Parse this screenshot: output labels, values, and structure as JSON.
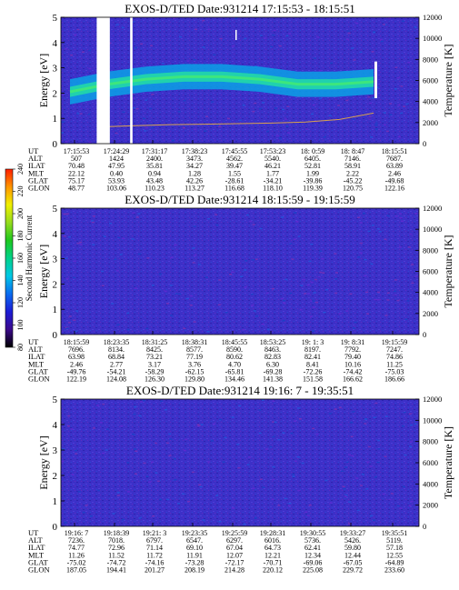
{
  "chart_data": [
    {
      "type": "heatmap",
      "title": "EXOS-D/TED",
      "date": "Date:931214",
      "time_range": "17:15:53 - 18:15:51",
      "ylabel": "Energy [eV]",
      "ylabel_right": "Temperature [K]",
      "ylim": [
        0,
        5
      ],
      "yticks": [
        "0",
        "1",
        "2",
        "3",
        "4",
        "5"
      ],
      "ylim_right": [
        0,
        12000
      ],
      "yticks_right": [
        "0",
        "2000",
        "4000",
        "6000",
        "8000",
        "10000",
        "12000"
      ],
      "time_labels": [
        "17:15:53",
        "17:24:29",
        "17:31:17",
        "17:38:23",
        "17:45:55",
        "17:53:23",
        "18: 0:59",
        "18: 8:47",
        "18:15:51"
      ],
      "rows": [
        {
          "label": "UT",
          "values": [
            "17:15:53",
            "17:24:29",
            "17:31:17",
            "17:38:23",
            "17:45:55",
            "17:53:23",
            "18: 0:59",
            "18: 8:47",
            "18:15:51"
          ]
        },
        {
          "label": "ALT",
          "values": [
            "507",
            "1424",
            "2400.",
            "3473.",
            "4562.",
            "5540.",
            "6405.",
            "7146.",
            "7687."
          ]
        },
        {
          "label": "ILAT",
          "values": [
            "70.48",
            "47.95",
            "35.81",
            "34.27",
            "39.47",
            "46.21",
            "52.81",
            "58.91",
            "63.89"
          ]
        },
        {
          "label": "MLT",
          "values": [
            "22.12",
            "0.40",
            "0.94",
            "1.28",
            "1.55",
            "1.77",
            "1.99",
            "2.22",
            "2.46"
          ]
        },
        {
          "label": "GLAT",
          "values": [
            "75.17",
            "53.93",
            "43.48",
            "42.26",
            "-28.61",
            "-34.21",
            "-39.86",
            "-45.22",
            "-49.68"
          ]
        },
        {
          "label": "GLON",
          "values": [
            "48.77",
            "103.06",
            "110.23",
            "113.27",
            "116.68",
            "118.10",
            "119.39",
            "120.75",
            "122.16"
          ]
        }
      ],
      "band_energy_ev": [
        2.0,
        2.3,
        2.5,
        2.6,
        2.6,
        2.5,
        2.3,
        2.3,
        2.4
      ],
      "temperature_k": [
        1600,
        1700,
        1800,
        1850,
        1900,
        1950,
        2050,
        2300,
        2900
      ],
      "data_gaps_minutes": [
        [
          6.0,
          8.2
        ],
        [
          11.6,
          12.0
        ]
      ],
      "colormap": "rainbow"
    },
    {
      "type": "heatmap",
      "title": "EXOS-D/TED",
      "date": "Date:931214",
      "time_range": "18:15:59 - 19:15:59",
      "ylabel": "Energy [eV]",
      "ylabel_right": "Temperature [K]",
      "ylim": [
        0,
        5
      ],
      "yticks": [
        "0",
        "1",
        "2",
        "3",
        "4",
        "5"
      ],
      "ylim_right": [
        0,
        12000
      ],
      "yticks_right": [
        "0",
        "2000",
        "4000",
        "6000",
        "8000",
        "10000",
        "12000"
      ],
      "time_labels": [
        "18:15:59",
        "18:23:35",
        "18:31:25",
        "18:38:31",
        "18:45:55",
        "18:53:25",
        "19: 1: 3",
        "19: 8:31",
        "19:15:59"
      ],
      "rows": [
        {
          "label": "UT",
          "values": [
            "18:15:59",
            "18:23:35",
            "18:31:25",
            "18:38:31",
            "18:45:55",
            "18:53:25",
            "19: 1: 3",
            "19: 8:31",
            "19:15:59"
          ]
        },
        {
          "label": "ALT",
          "values": [
            "7696.",
            "8134.",
            "8425.",
            "8577.",
            "8590.",
            "8463.",
            "8197.",
            "7792.",
            "7247."
          ]
        },
        {
          "label": "ILAT",
          "values": [
            "63.98",
            "68.84",
            "73.21",
            "77.19",
            "80.62",
            "82.83",
            "82.41",
            "79.40",
            "74.86"
          ]
        },
        {
          "label": "MLT",
          "values": [
            "2.46",
            "2.77",
            "3.17",
            "3.76",
            "4.70",
            "6.30",
            "8.41",
            "10.16",
            "11.25"
          ]
        },
        {
          "label": "GLAT",
          "values": [
            "-49.76",
            "-54.21",
            "-58.29",
            "-62.15",
            "-65.81",
            "-69.28",
            "-72.26",
            "-74.42",
            "-75.03"
          ]
        },
        {
          "label": "GLON",
          "values": [
            "122.19",
            "124.08",
            "126.30",
            "129.80",
            "134.46",
            "141.38",
            "151.58",
            "166.62",
            "186.66"
          ]
        }
      ],
      "colormap": "rainbow"
    },
    {
      "type": "heatmap",
      "title": "EXOS-D/TED",
      "date": "Date:931214",
      "time_range": "19:16: 7 - 19:35:51",
      "ylabel": "Energy [eV]",
      "ylabel_right": "Temperature [K]",
      "ylim": [
        0,
        5
      ],
      "yticks": [
        "0",
        "1",
        "2",
        "3",
        "4",
        "5"
      ],
      "ylim_right": [
        0,
        12000
      ],
      "yticks_right": [
        "0",
        "2000",
        "4000",
        "6000",
        "8000",
        "10000",
        "12000"
      ],
      "time_labels": [
        "19:16: 7",
        "19:18:39",
        "19:21: 3",
        "19:23:35",
        "19:25:59",
        "19:28:31",
        "19:30:55",
        "19:33:27",
        "19:35:51"
      ],
      "rows": [
        {
          "label": "UT",
          "values": [
            "19:16: 7",
            "19:18:39",
            "19:21: 3",
            "19:23:35",
            "19:25:59",
            "19:28:31",
            "19:30:55",
            "19:33:27",
            "19:35:51"
          ]
        },
        {
          "label": "ALT",
          "values": [
            "7236.",
            "7018.",
            "6797.",
            "6547.",
            "6297.",
            "6016.",
            "5736.",
            "5426.",
            "5119."
          ]
        },
        {
          "label": "ILAT",
          "values": [
            "74.77",
            "72.96",
            "71.14",
            "69.10",
            "67.04",
            "64.73",
            "62.41",
            "59.80",
            "57.18"
          ]
        },
        {
          "label": "MLT",
          "values": [
            "11.26",
            "11.52",
            "11.72",
            "11.91",
            "12.07",
            "12.21",
            "12.34",
            "12.44",
            "12.55"
          ]
        },
        {
          "label": "GLAT",
          "values": [
            "-75.02",
            "-74.72",
            "-74.16",
            "-73.28",
            "-72.17",
            "-70.71",
            "-69.06",
            "-67.05",
            "-64.89"
          ]
        },
        {
          "label": "GLON",
          "values": [
            "187.05",
            "194.41",
            "201.27",
            "208.19",
            "214.28",
            "220.12",
            "225.08",
            "229.72",
            "233.60"
          ]
        }
      ],
      "colormap": "rainbow"
    }
  ],
  "colorbar": {
    "label": "Second Harmonic Current",
    "min": 80,
    "max": 240,
    "ticks": [
      "80",
      "100",
      "120",
      "140",
      "160",
      "180",
      "200",
      "220",
      "240"
    ],
    "colors": [
      "#000000",
      "#3b0a8c",
      "#1c1cd6",
      "#0a6cf0",
      "#00c8e6",
      "#00d28a",
      "#1ec81e",
      "#96dc1e",
      "#f0f000",
      "#ff9600",
      "#ff1e00"
    ]
  }
}
